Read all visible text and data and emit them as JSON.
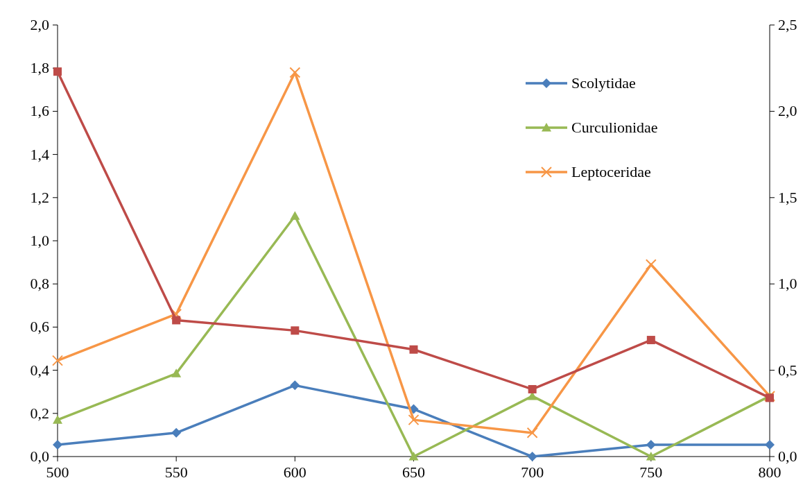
{
  "chart_data": {
    "type": "line",
    "x": [
      500,
      550,
      600,
      650,
      700,
      750,
      800
    ],
    "xlim": [
      500,
      800
    ],
    "xticks": [
      500,
      550,
      600,
      650,
      700,
      750,
      800
    ],
    "ylim": [
      0,
      2
    ],
    "yticks": [
      {
        "value": 0,
        "label": "0,0"
      },
      {
        "value": 0.2,
        "label": "0,2"
      },
      {
        "value": 0.4,
        "label": "0,4"
      },
      {
        "value": 0.6,
        "label": "0,6"
      },
      {
        "value": 0.8,
        "label": "0,8"
      },
      {
        "value": 1,
        "label": "1,0"
      },
      {
        "value": 1.2,
        "label": "1,2"
      },
      {
        "value": 1.4,
        "label": "1,4"
      },
      {
        "value": 1.6,
        "label": "1,6"
      },
      {
        "value": 1.8,
        "label": "1,8"
      },
      {
        "value": 2,
        "label": "2,0"
      }
    ],
    "y2lim": [
      0,
      2.5
    ],
    "y2ticks": [
      {
        "value": 0,
        "label": "0,0"
      },
      {
        "value": 0.5,
        "label": "0,5"
      },
      {
        "value": 1,
        "label": "1,0"
      },
      {
        "value": 1.5,
        "label": "1,5"
      },
      {
        "value": 2,
        "label": "2,0"
      },
      {
        "value": 2.5,
        "label": "2,5"
      }
    ],
    "grid": false,
    "legend": "top right",
    "line_style": "solid",
    "series": [
      {
        "name": "Scolytidae",
        "color": "#4a7ebb",
        "marker": "diamond",
        "values": [
          0.055,
          0.11,
          0.33,
          0.22,
          0.0,
          0.055,
          0.055
        ]
      },
      {
        "name": "Curculionidae",
        "color": "#98b954",
        "marker": "triangle",
        "values": [
          0.17,
          0.385,
          1.115,
          0.0,
          0.28,
          0.0,
          0.28
        ]
      },
      {
        "name": "Leptoceridae",
        "color": "#f79646",
        "marker": "cross",
        "values": [
          0.445,
          0.66,
          1.78,
          0.17,
          0.11,
          0.89,
          0.28
        ]
      },
      {
        "color": "#be4b48",
        "marker": "square",
        "axis": "y2",
        "values": [
          2.23,
          0.79,
          0.73,
          0.62,
          0.39,
          0.675,
          0.34
        ]
      }
    ]
  }
}
